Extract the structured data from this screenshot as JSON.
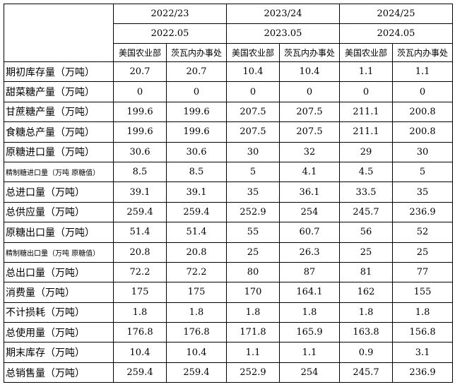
{
  "table": {
    "years": [
      "2022/23",
      "2023/24",
      "2024/25"
    ],
    "dates": [
      "2022.05",
      "2023.05",
      "2024.05"
    ],
    "sources": [
      "美国农业部",
      "茨瓦内办事处",
      "美国农业部",
      "茨瓦内办事处",
      "美国农业部",
      "茨瓦内办事处"
    ],
    "rows": [
      {
        "label": "期初库存量（万吨）",
        "values": [
          "20.7",
          "20.7",
          "10.4",
          "10.4",
          "1.1",
          "1.1"
        ]
      },
      {
        "label": "甜菜糖产量（万吨）",
        "values": [
          "0",
          "0",
          "0",
          "0",
          "0",
          "0"
        ]
      },
      {
        "label": "甘蔗糖产量（万吨）",
        "values": [
          "199.6",
          "199.6",
          "207.5",
          "207.5",
          "211.1",
          "200.8"
        ]
      },
      {
        "label": "食糖总产量（万吨）",
        "values": [
          "199.6",
          "199.6",
          "207.5",
          "207.5",
          "211.1",
          "200.8"
        ]
      },
      {
        "label": "原糖进口量（万吨）",
        "values": [
          "30.6",
          "30.6",
          "30",
          "32",
          "29",
          "30"
        ]
      },
      {
        "label": "精制糖进口量（万吨 原糖值）",
        "values": [
          "8.5",
          "8.5",
          "5",
          "4.1",
          "4.5",
          "5"
        ]
      },
      {
        "label": "总进口量（万吨）",
        "values": [
          "39.1",
          "39.1",
          "35",
          "36.1",
          "33.5",
          "35"
        ]
      },
      {
        "label": "总供应量（万吨）",
        "values": [
          "259.4",
          "259.4",
          "252.9",
          "254",
          "245.7",
          "236.9"
        ]
      },
      {
        "label": "原糖出口量（万吨）",
        "values": [
          "51.4",
          "51.4",
          "55",
          "60.7",
          "56",
          "52"
        ]
      },
      {
        "label": "精制糖出口量（万吨 原糖值）",
        "values": [
          "20.8",
          "20.8",
          "25",
          "26.3",
          "25",
          "25"
        ]
      },
      {
        "label": "总出口量（万吨）",
        "values": [
          "72.2",
          "72.2",
          "80",
          "87",
          "81",
          "77"
        ]
      },
      {
        "label": "消费量（万吨）",
        "values": [
          "175",
          "175",
          "170",
          "164.1",
          "162",
          "155"
        ]
      },
      {
        "label": "不计损耗（万吨）",
        "values": [
          "1.8",
          "1.8",
          "1.8",
          "1.8",
          "1.8",
          "1.8"
        ]
      },
      {
        "label": "总使用量（万吨）",
        "values": [
          "176.8",
          "176.8",
          "171.8",
          "165.9",
          "163.8",
          "156.8"
        ]
      },
      {
        "label": "期末库存（万吨）",
        "values": [
          "10.4",
          "10.4",
          "1.1",
          "1.1",
          "0.9",
          "3.1"
        ]
      },
      {
        "label": "总销售量（万吨）",
        "values": [
          "259.4",
          "259.4",
          "252.9",
          "254",
          "245.7",
          "236.9"
        ]
      }
    ]
  }
}
